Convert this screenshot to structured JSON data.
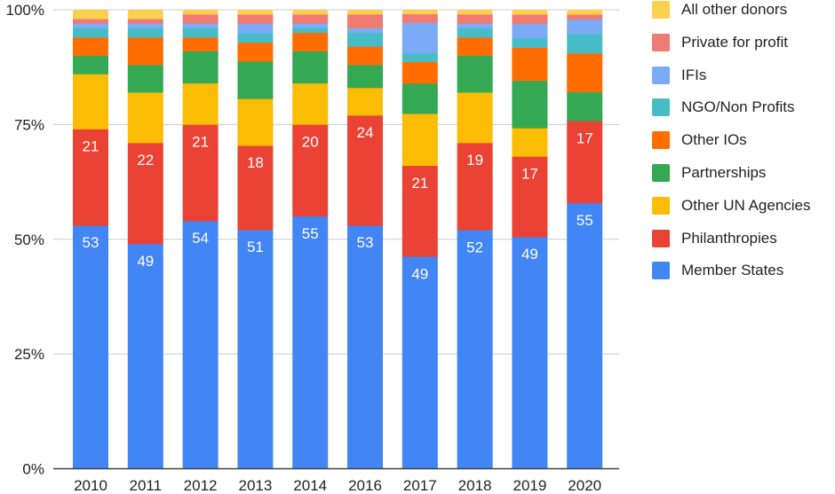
{
  "chart_data": {
    "type": "bar",
    "stacked": true,
    "normalized": "percent",
    "title": "",
    "xlabel": "",
    "ylabel": "",
    "ylim": [
      0,
      100
    ],
    "yticks": [
      "0%",
      "25%",
      "50%",
      "75%",
      "100%"
    ],
    "grid": true,
    "legend_position": "right",
    "categories": [
      "2010",
      "2011",
      "2012",
      "2013",
      "2014",
      "2016",
      "2017",
      "2018",
      "2019",
      "2020"
    ],
    "series": [
      {
        "name": "Member States",
        "color": "#4285f4",
        "labeled": true,
        "values": [
          53,
          49,
          54,
          51,
          55,
          53,
          49,
          52,
          49,
          55
        ]
      },
      {
        "name": "Philanthropies",
        "color": "#ea4335",
        "labeled": true,
        "values": [
          21,
          22,
          21,
          18,
          20,
          24,
          21,
          19,
          17,
          17
        ]
      },
      {
        "name": "Other UN Agencies",
        "color": "#fbbc04",
        "labeled": false,
        "values": [
          12,
          11,
          9,
          10,
          9,
          6,
          12,
          11,
          6,
          0
        ]
      },
      {
        "name": "Partnerships",
        "color": "#34a853",
        "labeled": false,
        "values": [
          4,
          6,
          7,
          8,
          7,
          5,
          7,
          8,
          10,
          6
        ]
      },
      {
        "name": "Other IOs",
        "color": "#ff6d01",
        "labeled": false,
        "values": [
          4,
          6,
          3,
          4,
          4,
          4,
          5,
          4,
          7,
          8
        ]
      },
      {
        "name": "NGO/Non Profits",
        "color": "#46bdc6",
        "labeled": false,
        "values": [
          2,
          2,
          2,
          2,
          1,
          3,
          2,
          2,
          2,
          4
        ]
      },
      {
        "name": "IFIs",
        "color": "#7baaf7",
        "labeled": false,
        "values": [
          1,
          1,
          1,
          2,
          1,
          1,
          7,
          1,
          3,
          3
        ]
      },
      {
        "name": "Private for profit",
        "color": "#f07b72",
        "labeled": false,
        "values": [
          1,
          1,
          2,
          2,
          2,
          3,
          2,
          2,
          2,
          1
        ]
      },
      {
        "name": "All other donors",
        "color": "#fcd04f",
        "labeled": false,
        "values": [
          2,
          2,
          1,
          1,
          1,
          1,
          1,
          1,
          1,
          1
        ]
      }
    ]
  },
  "legend": {
    "items": [
      {
        "label": "All other donors",
        "color": "#fcd04f"
      },
      {
        "label": "Private for profit",
        "color": "#f07b72"
      },
      {
        "label": "IFIs",
        "color": "#7baaf7"
      },
      {
        "label": "NGO/Non Profits",
        "color": "#46bdc6"
      },
      {
        "label": "Other IOs",
        "color": "#ff6d01"
      },
      {
        "label": "Partnerships",
        "color": "#34a853"
      },
      {
        "label": "Other UN Agencies",
        "color": "#fbbc04"
      },
      {
        "label": "Philanthropies",
        "color": "#ea4335"
      },
      {
        "label": "Member States",
        "color": "#4285f4"
      }
    ]
  }
}
